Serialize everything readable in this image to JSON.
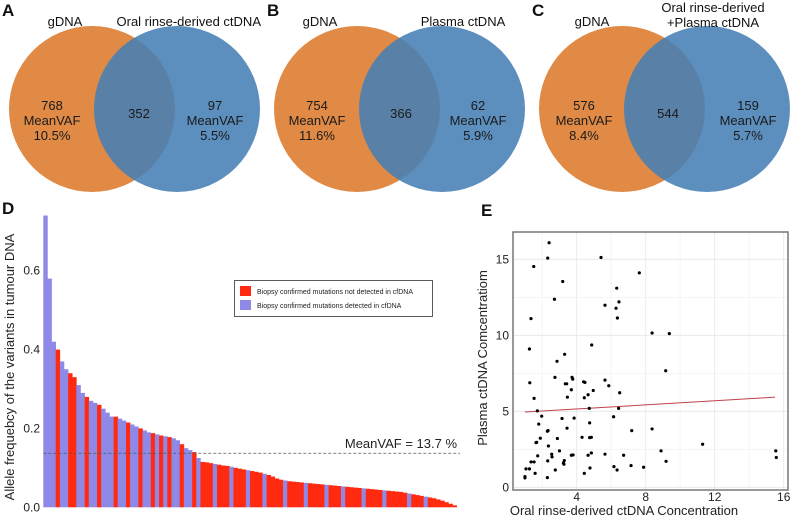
{
  "panels": {
    "A": {
      "label": "A",
      "left_title": "gDNA",
      "right_title_lines": [
        "Oral rinse-derived ctDNA"
      ],
      "left": {
        "count": "768",
        "metric": "MeanVAF",
        "value": "10.5%"
      },
      "overlap": "352",
      "right": {
        "count": "97",
        "metric": "MeanVAF",
        "value": "5.5%"
      }
    },
    "B": {
      "label": "B",
      "left_title": "gDNA",
      "right_title_lines": [
        "Plasma ctDNA"
      ],
      "left": {
        "count": "754",
        "metric": "MeanVAF",
        "value": "11.6%"
      },
      "overlap": "366",
      "right": {
        "count": "62",
        "metric": "MeanVAF",
        "value": "5.9%"
      }
    },
    "C": {
      "label": "C",
      "left_title": "gDNA",
      "right_title_lines": [
        "Oral rinse-derived",
        "+Plasma ctDNA"
      ],
      "left": {
        "count": "576",
        "metric": "MeanVAF",
        "value": "8.4%"
      },
      "overlap": "544",
      "right": {
        "count": "159",
        "metric": "MeanVAF",
        "value": "5.7%"
      }
    },
    "D": {
      "label": "D"
    },
    "E": {
      "label": "E"
    }
  },
  "colors": {
    "gdna": "#E08A45",
    "ctdna": "#4580B5",
    "not_detected": "#FF2A10",
    "detected": "#8E89E6",
    "regression": "#C0404A",
    "points": "#000000"
  },
  "chart_data": [
    {
      "panel": "A",
      "type": "venn",
      "sets": [
        "gDNA",
        "Oral rinse-derived ctDNA"
      ],
      "only_left": 768,
      "overlap": 352,
      "only_right": 97,
      "left_meanvaf_pct": 10.5,
      "right_meanvaf_pct": 5.5
    },
    {
      "panel": "B",
      "type": "venn",
      "sets": [
        "gDNA",
        "Plasma ctDNA"
      ],
      "only_left": 754,
      "overlap": 366,
      "only_right": 62,
      "left_meanvaf_pct": 11.6,
      "right_meanvaf_pct": 5.9
    },
    {
      "panel": "C",
      "type": "venn",
      "sets": [
        "gDNA",
        "Oral rinse-derived +Plasma ctDNA"
      ],
      "only_left": 576,
      "overlap": 544,
      "only_right": 159,
      "left_meanvaf_pct": 8.4,
      "right_meanvaf_pct": 5.7
    },
    {
      "panel": "D",
      "type": "bar",
      "ylabel": "Allele frequebcy of the variants in tumour DNA",
      "xlabel": "",
      "ylim": [
        0,
        0.74
      ],
      "yticks": [
        "0.0",
        "0.2",
        "0.4",
        "0.6"
      ],
      "grid": false,
      "legend_position": "top-right",
      "legend": [
        {
          "key": "not_detected",
          "label": "Biopsy confirmed mutations not detected in cfDNA"
        },
        {
          "key": "detected",
          "label": "Biopsy confirmed mutations detected in cfDNA"
        }
      ],
      "mean_line": {
        "value": 0.137,
        "label": "MeanVAF = 13.7 %"
      },
      "values": [
        0.74,
        0.58,
        0.42,
        0.4,
        0.37,
        0.35,
        0.34,
        0.33,
        0.31,
        0.29,
        0.28,
        0.27,
        0.265,
        0.26,
        0.25,
        0.24,
        0.23,
        0.23,
        0.225,
        0.22,
        0.215,
        0.21,
        0.205,
        0.2,
        0.195,
        0.19,
        0.188,
        0.185,
        0.182,
        0.18,
        0.178,
        0.175,
        0.17,
        0.16,
        0.15,
        0.145,
        0.14,
        0.125,
        0.115,
        0.114,
        0.112,
        0.11,
        0.108,
        0.106,
        0.105,
        0.103,
        0.1,
        0.098,
        0.096,
        0.094,
        0.092,
        0.09,
        0.088,
        0.085,
        0.082,
        0.078,
        0.073,
        0.07,
        0.068,
        0.066,
        0.065,
        0.064,
        0.063,
        0.062,
        0.061,
        0.06,
        0.059,
        0.058,
        0.057,
        0.056,
        0.055,
        0.054,
        0.053,
        0.052,
        0.051,
        0.05,
        0.049,
        0.048,
        0.047,
        0.046,
        0.045,
        0.044,
        0.043,
        0.042,
        0.041,
        0.04,
        0.039,
        0.037,
        0.035,
        0.033,
        0.031,
        0.029,
        0.027,
        0.025,
        0.023,
        0.02,
        0.017,
        0.013,
        0.009,
        0.005
      ],
      "detected": [
        1,
        1,
        1,
        0,
        1,
        1,
        0,
        0,
        1,
        1,
        0,
        1,
        1,
        0,
        1,
        1,
        1,
        0,
        1,
        1,
        0,
        1,
        1,
        0,
        1,
        1,
        0,
        1,
        0,
        1,
        0,
        1,
        1,
        0,
        1,
        1,
        0,
        1,
        0,
        0,
        0,
        1,
        0,
        0,
        0,
        1,
        0,
        0,
        0,
        1,
        0,
        0,
        0,
        1,
        0,
        0,
        0,
        0,
        1,
        0,
        0,
        0,
        0,
        1,
        0,
        0,
        0,
        0,
        1,
        0,
        0,
        0,
        1,
        0,
        0,
        0,
        0,
        1,
        0,
        0,
        0,
        0,
        1,
        0,
        0,
        0,
        0,
        0,
        1,
        0,
        0,
        0,
        1,
        0,
        0,
        0,
        0,
        0,
        0,
        0
      ]
    },
    {
      "panel": "E",
      "type": "scatter",
      "xlabel": "Oral rinse-derived ctDNA Concentration",
      "ylabel": "Plasma ctDNA Comcentratiom",
      "xlim": [
        0.3,
        16.3
      ],
      "ylim": [
        -0.2,
        16.8
      ],
      "xticks": [
        "4",
        "8",
        "12",
        "16"
      ],
      "yticks": [
        "0",
        "5",
        "10",
        "15"
      ],
      "grid": true,
      "regression_line": {
        "x": [
          1.0,
          15.5
        ],
        "y": [
          4.95,
          5.93
        ]
      },
      "points": [
        [
          2.4,
          16.09
        ],
        [
          2.32,
          15.08
        ],
        [
          1.51,
          14.53
        ],
        [
          5.41,
          15.12
        ],
        [
          7.63,
          14.11
        ],
        [
          3.19,
          13.54
        ],
        [
          6.32,
          13.1
        ],
        [
          2.71,
          12.37
        ],
        [
          5.64,
          11.98
        ],
        [
          6.45,
          12.2
        ],
        [
          6.28,
          11.78
        ],
        [
          6.36,
          11.14
        ],
        [
          1.35,
          11.1
        ],
        [
          8.37,
          10.15
        ],
        [
          9.37,
          10.11
        ],
        [
          1.26,
          9.1
        ],
        [
          4.87,
          9.36
        ],
        [
          3.3,
          8.75
        ],
        [
          2.86,
          8.29
        ],
        [
          9.16,
          7.67
        ],
        [
          2.74,
          7.23
        ],
        [
          1.28,
          6.88
        ],
        [
          3.73,
          7.23
        ],
        [
          3.77,
          7.12
        ],
        [
          3.34,
          6.81
        ],
        [
          3.42,
          6.81
        ],
        [
          4.48,
          6.9
        ],
        [
          4.4,
          6.94
        ],
        [
          5.64,
          7.05
        ],
        [
          5.86,
          6.68
        ],
        [
          3.69,
          6.42
        ],
        [
          4.96,
          6.37
        ],
        [
          4.66,
          6.09
        ],
        [
          6.49,
          6.22
        ],
        [
          1.53,
          5.85
        ],
        [
          3.46,
          5.93
        ],
        [
          4.44,
          5.89
        ],
        [
          1.72,
          5.03
        ],
        [
          4.73,
          5.19
        ],
        [
          6.43,
          5.19
        ],
        [
          1.97,
          4.68
        ],
        [
          3.15,
          4.53
        ],
        [
          3.85,
          4.55
        ],
        [
          6.14,
          4.64
        ],
        [
          1.8,
          4.16
        ],
        [
          4.75,
          4.24
        ],
        [
          3.44,
          3.89
        ],
        [
          2.34,
          3.73
        ],
        [
          2.3,
          3.69
        ],
        [
          7.19,
          3.73
        ],
        [
          8.37,
          3.84
        ],
        [
          1.89,
          3.23
        ],
        [
          1.68,
          2.96
        ],
        [
          2.88,
          3.21
        ],
        [
          4.31,
          3.29
        ],
        [
          4.75,
          3.27
        ],
        [
          4.85,
          3.29
        ],
        [
          1.64,
          2.94
        ],
        [
          2.36,
          2.72
        ],
        [
          11.3,
          2.83
        ],
        [
          3.0,
          2.4
        ],
        [
          8.89,
          2.4
        ],
        [
          15.54,
          2.4
        ],
        [
          2.55,
          2.18
        ],
        [
          4.85,
          2.26
        ],
        [
          5.64,
          2.18
        ],
        [
          3.79,
          2.13
        ],
        [
          3.69,
          2.11
        ],
        [
          4.66,
          2.11
        ],
        [
          6.72,
          2.11
        ],
        [
          1.74,
          2.07
        ],
        [
          2.57,
          2.0
        ],
        [
          15.57,
          1.96
        ],
        [
          2.32,
          1.74
        ],
        [
          3.28,
          1.76
        ],
        [
          3.23,
          1.6
        ],
        [
          3.26,
          1.52
        ],
        [
          1.35,
          1.67
        ],
        [
          1.53,
          1.67
        ],
        [
          9.18,
          1.71
        ],
        [
          7.15,
          1.43
        ],
        [
          6.16,
          1.36
        ],
        [
          7.88,
          1.32
        ],
        [
          6.34,
          1.14
        ],
        [
          4.77,
          1.27
        ],
        [
          1.06,
          1.21
        ],
        [
          1.26,
          1.21
        ],
        [
          2.76,
          1.14
        ],
        [
          1.59,
          0.92
        ],
        [
          4.44,
          0.92
        ],
        [
          1.0,
          0.7
        ],
        [
          1.0,
          0.62
        ],
        [
          2.3,
          0.64
        ]
      ]
    }
  ]
}
